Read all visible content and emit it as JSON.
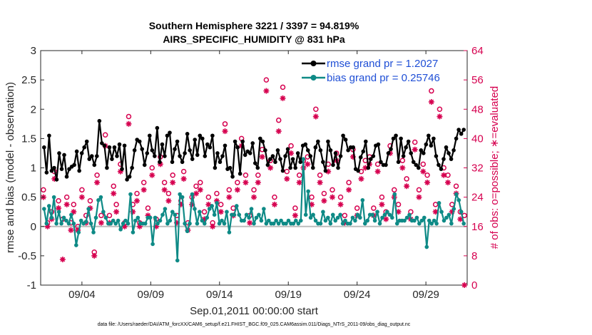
{
  "colors": {
    "rmse": "#000000",
    "bias": "#0e8a86",
    "obs": "#d6004f",
    "zero_line": "#bdbdbd",
    "legend_text": "#1f4fd6"
  },
  "chart_data": {
    "type": "line",
    "title": "Southern Hemisphere 3221 / 3397 = 94.819%",
    "subtitle": "AIRS_SPECIFIC_HUMIDITY @ 831 hPa",
    "xlabel": "Sep.01,2011 00:00:00 start",
    "ylabel": "rmse and bias (model - observation)",
    "ylabel_right": "# of obs: o=possible; ∗=evaluated",
    "footnote": "data file: /Users/raeder/DAI/ATM_forcXX/CAM6_setup/f.e21.FHIST_BGC.f09_025.CAM6assim.011/Diags_NTrS_2011-09/obs_diag_output.nc",
    "xlim": [
      1,
      32
    ],
    "ylim": [
      -1,
      3
    ],
    "ylim_right": [
      0,
      64
    ],
    "x_ticks": [
      4,
      9,
      14,
      19,
      24,
      29
    ],
    "x_tick_labels": [
      "09/04",
      "09/09",
      "09/14",
      "09/19",
      "09/24",
      "09/29"
    ],
    "y_ticks": [
      -1,
      -0.5,
      0,
      0.5,
      1,
      1.5,
      2,
      2.5,
      3
    ],
    "y_tick_labels": [
      "-1",
      "-0.5",
      "0",
      "0.5",
      "1",
      "1.5",
      "2",
      "2.5",
      "3"
    ],
    "y_ticks_right": [
      0,
      8,
      16,
      24,
      32,
      40,
      48,
      56,
      64
    ],
    "y_tick_labels_right": [
      "0",
      "8",
      "16",
      "24",
      "32",
      "40",
      "48",
      "56",
      "64"
    ],
    "legend_position": "top-right",
    "grid": false,
    "series": [
      {
        "name": "rmse grand pr = 1.2027",
        "kind": "line-marker",
        "values": [
          1.35,
          0.92,
          1.55,
          0.95,
          1.0,
          0.8,
          1.25,
          0.98,
          1.22,
          0.85,
          0.98,
          1.02,
          1.05,
          1.28,
          0.95,
          1.25,
          1.35,
          1.45,
          1.15,
          1.2,
          1.05,
          1.2,
          1.8,
          1.42,
          1.38,
          1.0,
          1.35,
          1.15,
          1.35,
          1.2,
          1.4,
          0.98,
          1.38,
          0.8,
          0.85,
          1.0,
          1.3,
          1.48,
          1.45,
          1.32,
          1.05,
          1.25,
          1.55,
          1.3,
          1.2,
          1.68,
          1.1,
          1.4,
          1.2,
          1.55,
          1.6,
          1.1,
          1.32,
          1.45,
          1.2,
          1.1,
          1.25,
          1.58,
          1.3,
          1.15,
          1.48,
          1.22,
          1.55,
          1.5,
          1.2,
          1.4,
          1.35,
          1.55,
          1.0,
          1.25,
          1.1,
          1.2,
          1.38,
          0.98,
          1.0,
          0.85,
          1.45,
          1.35,
          0.9,
          1.45,
          1.22,
          1.28,
          1.25,
          1.42,
          1.08,
          1.0,
          1.5,
          1.45,
          1.3,
          1.05,
          1.15,
          1.2,
          1.1,
          1.3,
          1.15,
          0.95,
          1.2,
          1.32,
          1.0,
          1.15,
          1.0,
          1.25,
          1.1,
          1.38,
          1.4,
          1.3,
          1.2,
          1.0,
          1.35,
          1.45,
          1.3,
          1.1,
          0.95,
          1.45,
          1.3,
          1.05,
          1.25,
          1.0,
          1.2,
          1.55,
          1.48,
          1.3,
          1.35,
          1.35,
          0.98,
          0.95,
          1.18,
          1.28,
          1.45,
          1.0,
          1.15,
          1.2,
          1.38,
          1.4,
          1.1,
          1.05,
          1.05,
          1.25,
          1.32,
          1.5,
          1.55,
          1.1,
          1.5,
          1.2,
          1.35,
          1.45,
          1.25,
          1.1,
          1.05,
          1.0,
          1.3,
          1.25,
          1.4,
          1.55,
          1.38,
          1.5,
          1.2,
          1.05,
          0.98,
          1.15,
          1.35,
          1.25,
          1.15,
          1.3,
          1.5,
          1.65,
          1.58,
          1.65
        ]
      },
      {
        "name": "bias grand pr = 0.25746",
        "kind": "line-marker",
        "values": [
          0.3,
          0.05,
          0.35,
          0.15,
          0.5,
          0.05,
          0.25,
          0.05,
          0.15,
          0.1,
          0.05,
          0.2,
          0.05,
          -0.32,
          -0.1,
          0.1,
          0.05,
          0.08,
          0.3,
          0.05,
          -0.1,
          0.15,
          0.45,
          0.5,
          0.25,
          0.15,
          0.05,
          0.05,
          0.1,
          0.05,
          0.1,
          -0.05,
          0.05,
          0.1,
          0.05,
          0.55,
          -0.1,
          0.1,
          0.15,
          0.05,
          0.05,
          0.05,
          0.15,
          0.15,
          -0.3,
          0.15,
          0.05,
          0.1,
          0.2,
          0.3,
          0.05,
          0.1,
          0.25,
          0.2,
          -0.58,
          0.55,
          0.5,
          0.05,
          -0.08,
          0.05,
          0.55,
          0.3,
          0.05,
          0.25,
          0.1,
          0.05,
          0.15,
          0.3,
          0.35,
          0.2,
          0.4,
          0.05,
          0.1,
          0.05,
          0.25,
          -0.1,
          0.2,
          0.2,
          0.35,
          0.2,
          0.1,
          0.1,
          0.2,
          0.15,
          0.3,
          0.05,
          0.15,
          0.2,
          0.1,
          0.3,
          0.05,
          0.1,
          0.05,
          0.05,
          0.1,
          0.05,
          0.1,
          0.05,
          0.05,
          0.1,
          0.05,
          0.05,
          0.1,
          0.05,
          0.1,
          1.15,
          0.2,
          0.6,
          0.15,
          0.2,
          0.1,
          0.05,
          0.05,
          0.25,
          0.1,
          0.15,
          0.05,
          0.2,
          0.1,
          0.15,
          0.2,
          0.05,
          0.1,
          0.05,
          0.05,
          0.15,
          0.1,
          0.2,
          0.15,
          0.45,
          0.05,
          0.1,
          0.2,
          0.2,
          0.1,
          0.25,
          0.05,
          0.15,
          0.2,
          0.25,
          0.2,
          0.15,
          0.55,
          0.05,
          0.1,
          0.1,
          0.1,
          0.15,
          0.2,
          0.1,
          0.1,
          0.15,
          0.05,
          0.1,
          0.15,
          -0.35,
          0.1,
          0.05,
          0.1,
          0.05,
          0.4,
          0.25,
          0.1,
          0.15,
          0.2,
          0.05,
          0.3,
          0.55,
          0.45,
          0.25,
          0.05
        ]
      }
    ],
    "obs_possible": {
      "name": "# of obs possible (o)",
      "x": [
        1.2,
        1.5,
        1.8,
        2.0,
        2.3,
        2.6,
        2.9,
        3.2,
        3.4,
        3.7,
        4.0,
        4.3,
        4.6,
        4.9,
        5.1,
        5.4,
        5.7,
        6.0,
        6.3,
        6.5,
        6.8,
        7.1,
        7.4,
        7.7,
        8.0,
        8.2,
        8.5,
        8.8,
        9.1,
        9.4,
        9.7,
        10.0,
        10.3,
        10.6,
        10.9,
        11.2,
        11.4,
        11.7,
        12.0,
        12.3,
        12.6,
        12.9,
        13.2,
        13.5,
        13.8,
        14.1,
        14.4,
        14.7,
        15.0,
        15.3,
        15.6,
        15.9,
        16.2,
        16.5,
        16.8,
        17.1,
        17.4,
        17.7,
        18.0,
        18.3,
        18.6,
        18.9,
        19.2,
        19.5,
        19.8,
        20.1,
        20.4,
        20.7,
        21.0,
        21.3,
        21.6,
        21.9,
        22.2,
        22.5,
        22.8,
        23.1,
        23.4,
        23.7,
        24.0,
        24.3,
        24.6,
        24.9,
        25.2,
        25.5,
        25.8,
        26.1,
        26.4,
        26.7,
        27.0,
        27.3,
        27.6,
        27.9,
        28.2,
        28.5,
        28.8,
        29.1,
        29.4,
        29.7,
        30.0,
        30.3,
        30.6,
        30.9,
        31.2,
        31.5,
        31.8
      ],
      "y": [
        26,
        17,
        20,
        31,
        23,
        18,
        24,
        17,
        22,
        16,
        26,
        19,
        23,
        9,
        30,
        19,
        41,
        19,
        27,
        22,
        33,
        17,
        46,
        22,
        25,
        17,
        28,
        21,
        32,
        18,
        35,
        28,
        25,
        30,
        19,
        23,
        31,
        17,
        24,
        27,
        28,
        20,
        24,
        17,
        25,
        22,
        44,
        26,
        21,
        28,
        40,
        30,
        19,
        26,
        30,
        37,
        56,
        34,
        24,
        45,
        54,
        31,
        38,
        21,
        30,
        34,
        35,
        24,
        48,
        30,
        25,
        33,
        26,
        36,
        24,
        19,
        28,
        37,
        21,
        31,
        34,
        35,
        21,
        33,
        24,
        20,
        38,
        26,
        22,
        34,
        29,
        20,
        39,
        26,
        33,
        30,
        53,
        22,
        48,
        32,
        30,
        22,
        27,
        20,
        19
      ]
    },
    "obs_evaluated": {
      "name": "# of obs evaluated (∗)",
      "x": [
        1.2,
        1.5,
        1.8,
        2.0,
        2.3,
        2.6,
        2.9,
        3.2,
        3.4,
        3.7,
        4.0,
        4.3,
        4.6,
        4.9,
        5.1,
        5.4,
        5.7,
        6.0,
        6.3,
        6.5,
        6.8,
        7.1,
        7.4,
        7.7,
        8.0,
        8.2,
        8.5,
        8.8,
        9.1,
        9.4,
        9.7,
        10.0,
        10.3,
        10.6,
        10.9,
        11.2,
        11.4,
        11.7,
        12.0,
        12.3,
        12.6,
        12.9,
        13.2,
        13.5,
        13.8,
        14.1,
        14.4,
        14.7,
        15.0,
        15.3,
        15.6,
        15.9,
        16.2,
        16.5,
        16.8,
        17.1,
        17.4,
        17.7,
        18.0,
        18.3,
        18.6,
        18.9,
        19.2,
        19.5,
        19.8,
        20.1,
        20.4,
        20.7,
        21.0,
        21.3,
        21.6,
        21.9,
        22.2,
        22.5,
        22.8,
        23.1,
        23.4,
        23.7,
        24.0,
        24.3,
        24.6,
        24.9,
        25.2,
        25.5,
        25.8,
        26.1,
        26.4,
        26.7,
        27.0,
        27.3,
        27.6,
        27.9,
        28.2,
        28.5,
        28.8,
        29.1,
        29.4,
        29.7,
        30.0,
        30.3,
        30.6,
        30.9,
        31.2,
        31.5,
        31.8
      ],
      "y": [
        24,
        16,
        18,
        29,
        21,
        7,
        22,
        15,
        20,
        15,
        24,
        17,
        21,
        8,
        28,
        17,
        38,
        17,
        25,
        20,
        31,
        16,
        44,
        20,
        23,
        16,
        26,
        19,
        30,
        16,
        33,
        26,
        23,
        28,
        17,
        22,
        29,
        15,
        22,
        25,
        26,
        18,
        22,
        16,
        23,
        20,
        42,
        24,
        19,
        26,
        38,
        28,
        17,
        24,
        28,
        35,
        53,
        32,
        22,
        42,
        51,
        29,
        36,
        19,
        28,
        32,
        33,
        22,
        46,
        28,
        23,
        31,
        24,
        34,
        22,
        17,
        26,
        35,
        19,
        29,
        32,
        33,
        19,
        31,
        22,
        18,
        36,
        24,
        20,
        32,
        27,
        18,
        37,
        24,
        31,
        28,
        50,
        20,
        46,
        30,
        28,
        20,
        25,
        18,
        0
      ]
    }
  }
}
